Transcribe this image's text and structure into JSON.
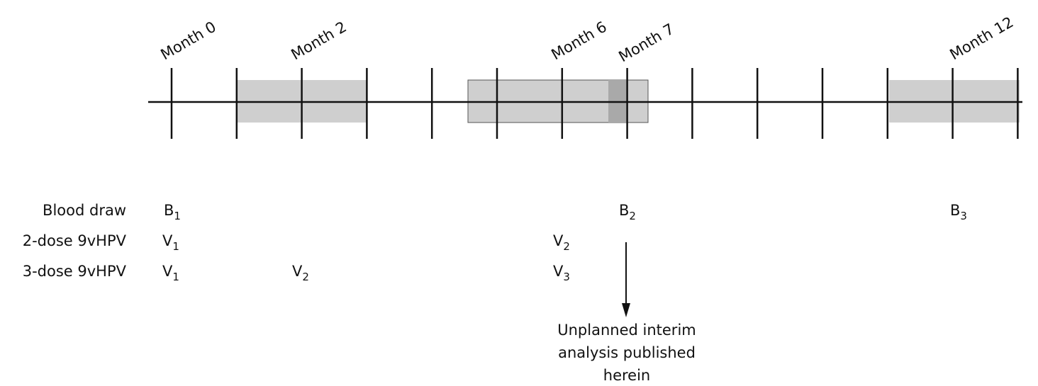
{
  "timeline": {
    "labels": [
      "Month 0",
      "Month 2",
      "Month 6",
      "Month 7",
      "Month 12"
    ]
  },
  "rows": [
    {
      "label": "Blood draw",
      "items": [
        {
          "letter": "B",
          "sub": "1"
        },
        {
          "letter": "B",
          "sub": "2"
        },
        {
          "letter": "B",
          "sub": "3"
        }
      ]
    },
    {
      "label": "2-dose 9vHPV",
      "items": [
        {
          "letter": "V",
          "sub": "1"
        },
        {
          "letter": "V",
          "sub": "2"
        }
      ]
    },
    {
      "label": "3-dose 9vHPV",
      "items": [
        {
          "letter": "V",
          "sub": "1"
        },
        {
          "letter": "V",
          "sub": "2"
        },
        {
          "letter": "V",
          "sub": "3"
        }
      ]
    }
  ],
  "annotation": [
    "Unplanned interim",
    "analysis published",
    "herein"
  ]
}
